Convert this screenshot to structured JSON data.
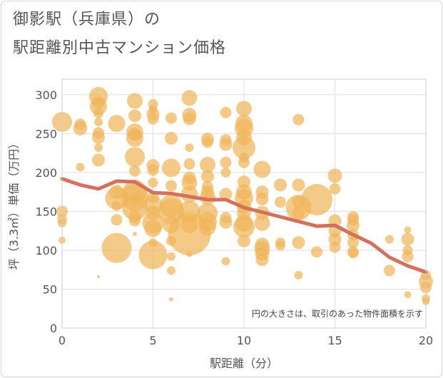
{
  "title_line1": "御影駅（兵庫県）の",
  "title_line2": "駅距離別中古マンション価格",
  "colors": {
    "bubble": "#f0b65a",
    "line": "#d4705c",
    "grid": "#dedede",
    "plot_border": "#cccccc"
  },
  "chart_data": {
    "type": "scatter",
    "xlabel": "駅距離（分）",
    "ylabel": "坪（3.3㎡）単価（万円）",
    "xlim": [
      0,
      20
    ],
    "ylim": [
      0,
      320
    ],
    "x_ticks": [
      0,
      5,
      10,
      15,
      20
    ],
    "y_ticks": [
      0,
      50,
      100,
      150,
      200,
      250,
      300
    ],
    "grid": true,
    "note": "円の大きさは、取引のあった物件面積を示す",
    "trend_line": {
      "x": [
        0,
        1,
        2,
        3,
        4,
        5,
        6,
        7,
        8,
        9,
        10,
        11,
        12,
        13,
        14,
        15,
        16,
        17,
        18,
        19,
        20
      ],
      "y": [
        192,
        184,
        179,
        189,
        188,
        174,
        173,
        169,
        165,
        165,
        155,
        149,
        143,
        137,
        131,
        132,
        120,
        109,
        91,
        80,
        72
      ]
    },
    "points": [
      {
        "x": 0,
        "y": 265,
        "size": 14
      },
      {
        "x": 0,
        "y": 150,
        "size": 8
      },
      {
        "x": 0,
        "y": 140,
        "size": 7
      },
      {
        "x": 0,
        "y": 135,
        "size": 6
      },
      {
        "x": 0,
        "y": 113,
        "size": 5
      },
      {
        "x": 1,
        "y": 262,
        "size": 8
      },
      {
        "x": 1,
        "y": 257,
        "size": 10
      },
      {
        "x": 1,
        "y": 207,
        "size": 6
      },
      {
        "x": 2,
        "y": 298,
        "size": 13
      },
      {
        "x": 2,
        "y": 290,
        "size": 9
      },
      {
        "x": 2,
        "y": 285,
        "size": 12
      },
      {
        "x": 2,
        "y": 276,
        "size": 7
      },
      {
        "x": 2,
        "y": 265,
        "size": 6
      },
      {
        "x": 2,
        "y": 251,
        "size": 8
      },
      {
        "x": 2,
        "y": 245,
        "size": 9
      },
      {
        "x": 2,
        "y": 232,
        "size": 6
      },
      {
        "x": 2,
        "y": 216,
        "size": 9
      },
      {
        "x": 2,
        "y": 66,
        "size": 2
      },
      {
        "x": 3,
        "y": 263,
        "size": 12
      },
      {
        "x": 3,
        "y": 175,
        "size": 10
      },
      {
        "x": 3,
        "y": 167,
        "size": 16
      },
      {
        "x": 3,
        "y": 157,
        "size": 7
      },
      {
        "x": 3,
        "y": 139,
        "size": 8
      },
      {
        "x": 3,
        "y": 103,
        "size": 21
      },
      {
        "x": 4,
        "y": 292,
        "size": 11
      },
      {
        "x": 4,
        "y": 273,
        "size": 9
      },
      {
        "x": 4,
        "y": 252,
        "size": 12
      },
      {
        "x": 4,
        "y": 249,
        "size": 9
      },
      {
        "x": 4,
        "y": 244,
        "size": 12
      },
      {
        "x": 4,
        "y": 220,
        "size": 14
      },
      {
        "x": 4,
        "y": 202,
        "size": 8
      },
      {
        "x": 4,
        "y": 175,
        "size": 17
      },
      {
        "x": 4,
        "y": 168,
        "size": 19
      },
      {
        "x": 4,
        "y": 155,
        "size": 18
      },
      {
        "x": 4,
        "y": 143,
        "size": 9
      },
      {
        "x": 4,
        "y": 138,
        "size": 8
      },
      {
        "x": 4,
        "y": 121,
        "size": 3
      },
      {
        "x": 5,
        "y": 288,
        "size": 7
      },
      {
        "x": 5,
        "y": 281,
        "size": 6
      },
      {
        "x": 5,
        "y": 275,
        "size": 9
      },
      {
        "x": 5,
        "y": 269,
        "size": 8
      },
      {
        "x": 5,
        "y": 209,
        "size": 9
      },
      {
        "x": 5,
        "y": 203,
        "size": 8
      },
      {
        "x": 5,
        "y": 187,
        "size": 7
      },
      {
        "x": 5,
        "y": 168,
        "size": 8
      },
      {
        "x": 5,
        "y": 159,
        "size": 13
      },
      {
        "x": 5,
        "y": 148,
        "size": 10
      },
      {
        "x": 5,
        "y": 135,
        "size": 15
      },
      {
        "x": 5,
        "y": 128,
        "size": 12
      },
      {
        "x": 5,
        "y": 110,
        "size": 6
      },
      {
        "x": 5,
        "y": 94,
        "size": 20
      },
      {
        "x": 6,
        "y": 270,
        "size": 8
      },
      {
        "x": 6,
        "y": 244,
        "size": 9
      },
      {
        "x": 6,
        "y": 206,
        "size": 13
      },
      {
        "x": 6,
        "y": 183,
        "size": 8
      },
      {
        "x": 6,
        "y": 157,
        "size": 16
      },
      {
        "x": 6,
        "y": 150,
        "size": 18
      },
      {
        "x": 6,
        "y": 133,
        "size": 12
      },
      {
        "x": 6,
        "y": 112,
        "size": 7
      },
      {
        "x": 6,
        "y": 92,
        "size": 6
      },
      {
        "x": 6,
        "y": 74,
        "size": 6
      },
      {
        "x": 6,
        "y": 37,
        "size": 3
      },
      {
        "x": 7,
        "y": 296,
        "size": 11
      },
      {
        "x": 7,
        "y": 274,
        "size": 10
      },
      {
        "x": 7,
        "y": 269,
        "size": 9
      },
      {
        "x": 7,
        "y": 232,
        "size": 6
      },
      {
        "x": 7,
        "y": 211,
        "size": 8
      },
      {
        "x": 7,
        "y": 193,
        "size": 9
      },
      {
        "x": 7,
        "y": 187,
        "size": 11
      },
      {
        "x": 7,
        "y": 172,
        "size": 12
      },
      {
        "x": 7,
        "y": 150,
        "size": 15
      },
      {
        "x": 7,
        "y": 133,
        "size": 12
      },
      {
        "x": 7,
        "y": 121,
        "size": 30
      },
      {
        "x": 7,
        "y": 95,
        "size": 4
      },
      {
        "x": 8,
        "y": 243,
        "size": 9
      },
      {
        "x": 8,
        "y": 239,
        "size": 8
      },
      {
        "x": 8,
        "y": 210,
        "size": 11
      },
      {
        "x": 8,
        "y": 195,
        "size": 9
      },
      {
        "x": 8,
        "y": 182,
        "size": 8
      },
      {
        "x": 8,
        "y": 175,
        "size": 9
      },
      {
        "x": 8,
        "y": 168,
        "size": 11
      },
      {
        "x": 8,
        "y": 148,
        "size": 14
      },
      {
        "x": 8,
        "y": 137,
        "size": 13
      },
      {
        "x": 8,
        "y": 130,
        "size": 12
      },
      {
        "x": 9,
        "y": 277,
        "size": 8
      },
      {
        "x": 9,
        "y": 242,
        "size": 8
      },
      {
        "x": 9,
        "y": 236,
        "size": 9
      },
      {
        "x": 9,
        "y": 213,
        "size": 8
      },
      {
        "x": 9,
        "y": 200,
        "size": 7
      },
      {
        "x": 9,
        "y": 172,
        "size": 9
      },
      {
        "x": 9,
        "y": 142,
        "size": 8
      },
      {
        "x": 9,
        "y": 136,
        "size": 9
      },
      {
        "x": 9,
        "y": 86,
        "size": 6
      },
      {
        "x": 10,
        "y": 282,
        "size": 11
      },
      {
        "x": 10,
        "y": 263,
        "size": 12
      },
      {
        "x": 10,
        "y": 257,
        "size": 13
      },
      {
        "x": 10,
        "y": 245,
        "size": 11
      },
      {
        "x": 10,
        "y": 232,
        "size": 16
      },
      {
        "x": 10,
        "y": 219,
        "size": 7
      },
      {
        "x": 10,
        "y": 213,
        "size": 8
      },
      {
        "x": 10,
        "y": 188,
        "size": 9
      },
      {
        "x": 10,
        "y": 175,
        "size": 11
      },
      {
        "x": 10,
        "y": 167,
        "size": 13
      },
      {
        "x": 10,
        "y": 156,
        "size": 10
      },
      {
        "x": 10,
        "y": 148,
        "size": 10
      },
      {
        "x": 10,
        "y": 135,
        "size": 12
      },
      {
        "x": 10,
        "y": 130,
        "size": 15
      },
      {
        "x": 10,
        "y": 112,
        "size": 9
      },
      {
        "x": 11,
        "y": 204,
        "size": 12
      },
      {
        "x": 11,
        "y": 175,
        "size": 9
      },
      {
        "x": 11,
        "y": 166,
        "size": 9
      },
      {
        "x": 11,
        "y": 148,
        "size": 10
      },
      {
        "x": 11,
        "y": 135,
        "size": 11
      },
      {
        "x": 11,
        "y": 107,
        "size": 10
      },
      {
        "x": 11,
        "y": 102,
        "size": 11
      },
      {
        "x": 11,
        "y": 96,
        "size": 10
      },
      {
        "x": 11,
        "y": 88,
        "size": 9
      },
      {
        "x": 12,
        "y": 184,
        "size": 9
      },
      {
        "x": 12,
        "y": 162,
        "size": 8
      },
      {
        "x": 12,
        "y": 110,
        "size": 7
      },
      {
        "x": 12,
        "y": 106,
        "size": 7
      },
      {
        "x": 13,
        "y": 268,
        "size": 8
      },
      {
        "x": 13,
        "y": 184,
        "size": 9
      },
      {
        "x": 13,
        "y": 162,
        "size": 9
      },
      {
        "x": 13,
        "y": 155,
        "size": 18
      },
      {
        "x": 13,
        "y": 148,
        "size": 9
      },
      {
        "x": 13,
        "y": 110,
        "size": 9
      },
      {
        "x": 13,
        "y": 68,
        "size": 6
      },
      {
        "x": 14,
        "y": 165,
        "size": 22
      },
      {
        "x": 14,
        "y": 98,
        "size": 8
      },
      {
        "x": 15,
        "y": 196,
        "size": 10
      },
      {
        "x": 15,
        "y": 179,
        "size": 8
      },
      {
        "x": 15,
        "y": 138,
        "size": 9
      },
      {
        "x": 15,
        "y": 125,
        "size": 9
      },
      {
        "x": 15,
        "y": 114,
        "size": 9
      },
      {
        "x": 15,
        "y": 104,
        "size": 8
      },
      {
        "x": 16,
        "y": 143,
        "size": 8
      },
      {
        "x": 16,
        "y": 139,
        "size": 8
      },
      {
        "x": 16,
        "y": 132,
        "size": 9
      },
      {
        "x": 16,
        "y": 120,
        "size": 8
      },
      {
        "x": 16,
        "y": 110,
        "size": 8
      },
      {
        "x": 16,
        "y": 98,
        "size": 8
      },
      {
        "x": 16,
        "y": 96,
        "size": 7
      },
      {
        "x": 18,
        "y": 114,
        "size": 6
      },
      {
        "x": 18,
        "y": 74,
        "size": 8
      },
      {
        "x": 19,
        "y": 126,
        "size": 5
      },
      {
        "x": 19,
        "y": 114,
        "size": 9
      },
      {
        "x": 19,
        "y": 100,
        "size": 7
      },
      {
        "x": 19,
        "y": 92,
        "size": 8
      },
      {
        "x": 19,
        "y": 43,
        "size": 5
      },
      {
        "x": 20,
        "y": 68,
        "size": 7
      },
      {
        "x": 20,
        "y": 60,
        "size": 10
      },
      {
        "x": 20,
        "y": 52,
        "size": 8
      },
      {
        "x": 20,
        "y": 38,
        "size": 6
      },
      {
        "x": 20,
        "y": 34,
        "size": 5
      }
    ]
  }
}
